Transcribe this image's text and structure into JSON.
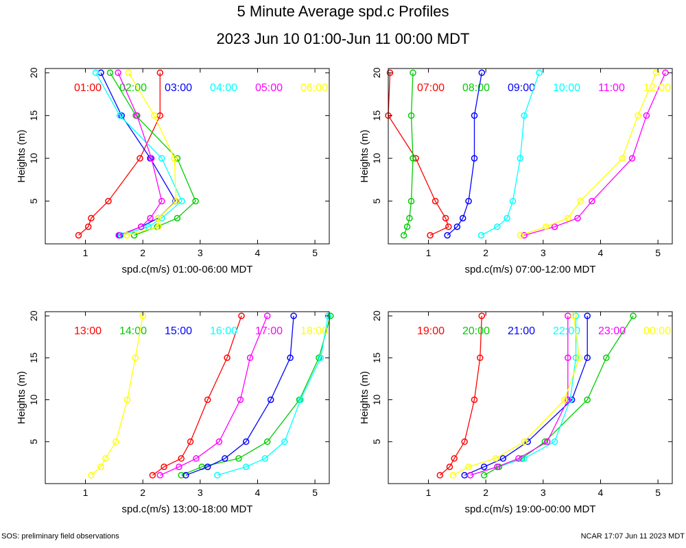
{
  "title": "5 Minute Average spd.c Profiles",
  "subtitle": "2023 Jun 10 01:00-Jun 11 00:00 MDT",
  "footer_left": "SOS: preliminary field observations",
  "footer_right": "NCAR 17:07 Jun 11 2023 MDT",
  "colors": [
    "#ff0000",
    "#00cc00",
    "#0000ff",
    "#00ffff",
    "#ff00ff",
    "#ffff00"
  ],
  "chart_data": [
    {
      "type": "line",
      "xlabel": "spd.c(m/s) 01:00-06:00 MDT",
      "ylabel": "Heights (m)",
      "xlim": [
        0.3,
        5.25
      ],
      "ylim": [
        0,
        20.5
      ],
      "xticks": [
        1,
        2,
        3,
        4,
        5
      ],
      "yticks": [
        5,
        10,
        15,
        20
      ],
      "series": [
        {
          "name": "01:00",
          "heights": [
            1,
            2,
            3,
            5,
            10,
            15,
            20
          ],
          "values": [
            0.88,
            1.05,
            1.1,
            1.4,
            1.95,
            2.3,
            2.3
          ]
        },
        {
          "name": "02:00",
          "heights": [
            1,
            2,
            3,
            5,
            10,
            15,
            20
          ],
          "values": [
            1.85,
            2.25,
            2.6,
            2.92,
            2.6,
            1.88,
            1.43
          ]
        },
        {
          "name": "03:00",
          "heights": [
            1,
            2,
            3,
            5,
            10,
            15,
            20
          ],
          "values": [
            1.6,
            1.97,
            2.27,
            2.57,
            2.13,
            1.63,
            1.27
          ]
        },
        {
          "name": "04:00",
          "heights": [
            1,
            2,
            3,
            5,
            10,
            15,
            20
          ],
          "values": [
            1.62,
            2.1,
            2.33,
            2.68,
            2.33,
            1.6,
            1.18
          ]
        },
        {
          "name": "05:00",
          "heights": [
            1,
            2,
            3,
            5,
            10,
            15,
            20
          ],
          "values": [
            1.58,
            1.97,
            2.13,
            2.33,
            2.15,
            1.9,
            1.57
          ]
        },
        {
          "name": "06:00",
          "heights": [
            1,
            2,
            3,
            5,
            10,
            15,
            20
          ],
          "values": [
            1.72,
            2.27,
            2.27,
            2.58,
            2.55,
            2.2,
            1.75
          ]
        }
      ]
    },
    {
      "type": "line",
      "xlabel": "spd.c(m/s) 07:00-12:00 MDT",
      "ylabel": "Heights (m)",
      "xlim": [
        0.3,
        5.25
      ],
      "ylim": [
        0,
        20.5
      ],
      "xticks": [
        1,
        2,
        3,
        4,
        5
      ],
      "yticks": [
        5,
        10,
        15,
        20
      ],
      "series": [
        {
          "name": "07:00",
          "heights": [
            1,
            2,
            3,
            5,
            10,
            15,
            20
          ],
          "values": [
            1.03,
            1.35,
            1.3,
            1.12,
            0.78,
            0.3,
            0.33
          ]
        },
        {
          "name": "08:00",
          "heights": [
            1,
            2,
            3,
            5,
            10,
            15,
            20
          ],
          "values": [
            0.57,
            0.63,
            0.67,
            0.7,
            0.73,
            0.7,
            0.73
          ]
        },
        {
          "name": "09:00",
          "heights": [
            1,
            2,
            3,
            5,
            10,
            15,
            20
          ],
          "values": [
            1.33,
            1.5,
            1.6,
            1.7,
            1.8,
            1.8,
            1.93
          ]
        },
        {
          "name": "10:00",
          "heights": [
            1,
            2,
            3,
            5,
            10,
            15,
            20
          ],
          "values": [
            1.92,
            2.2,
            2.37,
            2.47,
            2.6,
            2.67,
            2.93
          ]
        },
        {
          "name": "11:00",
          "heights": [
            1,
            2,
            3,
            5,
            10,
            15,
            20
          ],
          "values": [
            2.67,
            3.2,
            3.6,
            3.85,
            4.55,
            4.8,
            5.13
          ]
        },
        {
          "name": "12:00",
          "heights": [
            1,
            2,
            3,
            5,
            10,
            15,
            20
          ],
          "values": [
            2.6,
            3.05,
            3.43,
            3.65,
            4.38,
            4.65,
            4.97
          ]
        }
      ]
    },
    {
      "type": "line",
      "xlabel": "spd.c(m/s) 13:00-18:00 MDT",
      "ylabel": "Heights (m)",
      "xlim": [
        0.3,
        5.25
      ],
      "ylim": [
        0,
        20.5
      ],
      "xticks": [
        1,
        2,
        3,
        4,
        5
      ],
      "yticks": [
        5,
        10,
        15,
        20
      ],
      "series": [
        {
          "name": "13:00",
          "heights": [
            1,
            2,
            3,
            5,
            10,
            15,
            20
          ],
          "values": [
            2.17,
            2.37,
            2.67,
            2.83,
            3.13,
            3.47,
            3.72
          ]
        },
        {
          "name": "14:00",
          "heights": [
            1,
            2,
            3,
            5,
            10,
            15,
            20
          ],
          "values": [
            2.67,
            3.03,
            3.67,
            4.17,
            4.73,
            5.07,
            5.27
          ]
        },
        {
          "name": "15:00",
          "heights": [
            1,
            2,
            3,
            5,
            10,
            15,
            20
          ],
          "values": [
            2.75,
            3.13,
            3.43,
            3.8,
            4.23,
            4.57,
            4.63
          ]
        },
        {
          "name": "16:00",
          "heights": [
            1,
            2,
            3,
            5,
            10,
            15,
            20
          ],
          "values": [
            3.3,
            3.8,
            4.13,
            4.47,
            4.75,
            5.1,
            5.23
          ]
        },
        {
          "name": "17:00",
          "heights": [
            1,
            2,
            3,
            5,
            10,
            15,
            20
          ],
          "values": [
            2.3,
            2.63,
            2.93,
            3.33,
            3.7,
            3.87,
            4.17
          ]
        },
        {
          "name": "18:00",
          "heights": [
            1,
            2,
            3,
            5,
            10,
            15,
            20
          ],
          "values": [
            1.1,
            1.27,
            1.35,
            1.53,
            1.73,
            1.87,
            2.0
          ]
        }
      ]
    },
    {
      "type": "line",
      "xlabel": "spd.c(m/s) 19:00-00:00 MDT",
      "ylabel": "Heights (m)",
      "xlim": [
        0.3,
        5.25
      ],
      "ylim": [
        0,
        20.5
      ],
      "xticks": [
        1,
        2,
        3,
        4,
        5
      ],
      "yticks": [
        5,
        10,
        15,
        20
      ],
      "series": [
        {
          "name": "19:00",
          "heights": [
            1,
            2,
            3,
            5,
            10,
            15,
            20
          ],
          "values": [
            1.2,
            1.37,
            1.45,
            1.63,
            1.8,
            1.9,
            1.93
          ]
        },
        {
          "name": "20:00",
          "heights": [
            1,
            2,
            3,
            5,
            10,
            15,
            20
          ],
          "values": [
            1.97,
            2.23,
            2.63,
            3.03,
            3.77,
            4.1,
            4.57
          ]
        },
        {
          "name": "21:00",
          "heights": [
            1,
            2,
            3,
            5,
            10,
            15,
            20
          ],
          "values": [
            1.63,
            1.97,
            2.3,
            2.73,
            3.5,
            3.77,
            3.77
          ]
        },
        {
          "name": "22:00",
          "heights": [
            1,
            2,
            3,
            5,
            10,
            15,
            20
          ],
          "values": [
            1.73,
            2.2,
            2.67,
            3.2,
            3.47,
            3.57,
            3.57
          ]
        },
        {
          "name": "23:00",
          "heights": [
            1,
            2,
            3,
            5,
            10,
            15,
            20
          ],
          "values": [
            1.73,
            2.2,
            2.57,
            3.07,
            3.43,
            3.43,
            3.43
          ]
        },
        {
          "name": "00:00",
          "heights": [
            1,
            2,
            3,
            5,
            10,
            15,
            20
          ],
          "values": [
            1.43,
            1.7,
            2.17,
            2.67,
            3.37,
            3.63,
            3.53
          ]
        }
      ]
    }
  ]
}
